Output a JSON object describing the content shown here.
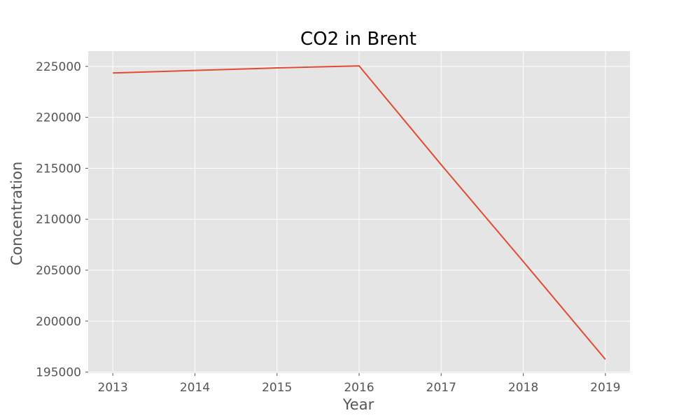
{
  "chart_data": {
    "type": "line",
    "title": "CO2 in Brent",
    "xlabel": "Year",
    "ylabel": "Concentration",
    "x": [
      2013,
      2014,
      2015,
      2016,
      2017,
      2018,
      2019
    ],
    "series": [
      {
        "values": [
          224350,
          224600,
          224850,
          225050,
          215350,
          205850,
          196250
        ]
      }
    ],
    "xticks": [
      "2013",
      "2014",
      "2015",
      "2016",
      "2017",
      "2018",
      "2019"
    ],
    "yticks": [
      "195000",
      "200000",
      "205000",
      "210000",
      "215000",
      "220000",
      "225000"
    ],
    "xlim": [
      2012.7,
      2019.3
    ],
    "ylim": [
      194900,
      226500
    ],
    "grid": true,
    "colors": {
      "background": "#e5e5e5",
      "grid": "#ffffff",
      "line": "#e24a33"
    }
  }
}
